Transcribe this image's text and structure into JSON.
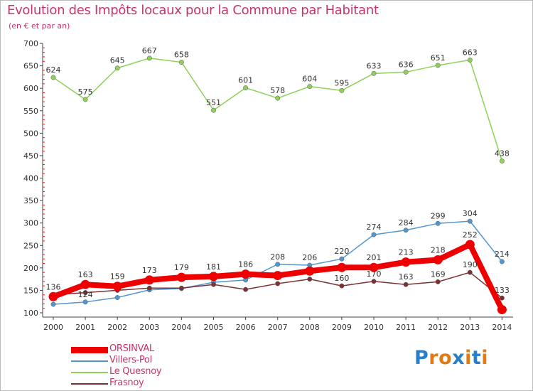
{
  "header": {
    "title": "Evolution des Impôts locaux pour la Commune par Habitant",
    "subtitle": "(en € et par an)"
  },
  "logo": {
    "text": "Proxiti",
    "letters": [
      "P",
      "r",
      "o",
      "x",
      "i",
      "t",
      "i"
    ],
    "colors": [
      "#2a7fc9",
      "#e07b18",
      "#e07b18",
      "#2a7fc9",
      "#e07b18",
      "#2a7fc9",
      "#e07b18"
    ]
  },
  "chart_data": {
    "type": "line",
    "title": "Evolution des Impôts locaux pour la Commune par Habitant",
    "subtitle": "(en € et par an)",
    "xlabel": "",
    "ylabel": "",
    "ylim": [
      100,
      700
    ],
    "yticks": [
      100,
      150,
      200,
      250,
      300,
      350,
      400,
      450,
      500,
      550,
      600,
      650,
      700
    ],
    "grid": false,
    "legend_position": "bottom-left",
    "categories": [
      "2000",
      "2001",
      "2002",
      "2003",
      "2004",
      "2005",
      "2006",
      "2007",
      "2008",
      "2009",
      "2010",
      "2011",
      "2012",
      "2013",
      "2014"
    ],
    "series": [
      {
        "name": "ORSINVAL",
        "color": "#ee0000",
        "values": [
          136,
          163,
          159,
          173,
          179,
          181,
          186,
          183,
          193,
          201,
          201,
          213,
          218,
          252,
          107
        ],
        "labels": [
          "136",
          "163",
          "159",
          "173",
          "179",
          "181",
          "186",
          "",
          "",
          "",
          "201",
          "213",
          "218",
          "252",
          ""
        ],
        "emphasis": true
      },
      {
        "name": "Villers-Pol",
        "color": "#5596cf",
        "values": [
          119,
          124,
          134,
          151,
          154,
          168,
          173,
          208,
          206,
          220,
          274,
          284,
          299,
          304,
          214
        ],
        "labels": [
          "",
          "124",
          "",
          "",
          "",
          "",
          "",
          "208",
          "206",
          "220",
          "274",
          "284",
          "299",
          "304",
          "214"
        ],
        "emphasis": false
      },
      {
        "name": "Le Quesnoy",
        "color": "#8ed05a",
        "values": [
          624,
          575,
          645,
          667,
          658,
          551,
          601,
          578,
          604,
          595,
          633,
          636,
          651,
          663,
          438
        ],
        "labels": [
          "624",
          "575",
          "645",
          "667",
          "658",
          "551",
          "601",
          "578",
          "604",
          "595",
          "633",
          "636",
          "651",
          "663",
          "438"
        ],
        "emphasis": false
      },
      {
        "name": "Frasnoy",
        "color": "#7a3133",
        "values": [
          140,
          145,
          150,
          155,
          155,
          163,
          152,
          165,
          175,
          160,
          170,
          163,
          169,
          190,
          133
        ],
        "labels": [
          "",
          "",
          "",
          "",
          "",
          "",
          "",
          "",
          "",
          "160",
          "170",
          "163",
          "169",
          "190",
          "133"
        ],
        "emphasis": false
      }
    ]
  }
}
